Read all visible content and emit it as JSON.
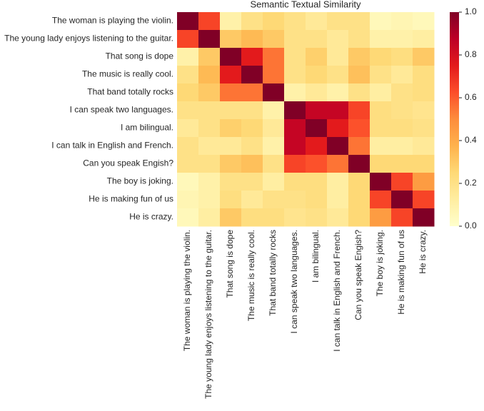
{
  "chart_data": {
    "type": "heatmap",
    "title": "Semantic Textual Similarity",
    "categories": [
      "The woman is playing the violin.",
      "The young lady enjoys listening to the guitar.",
      "That song is dope",
      "The music is really cool.",
      "That band totally rocks",
      "I can speak two languages.",
      "I am bilingual.",
      "I can talk in English and French.",
      "Can you speak Engish?",
      "The boy is joking.",
      "He is making fun of us",
      "He is crazy."
    ],
    "values": [
      [
        1,
        0.65,
        0.1,
        0.2,
        0.25,
        0.2,
        0.15,
        0.2,
        0.2,
        0.05,
        0.07,
        0.05
      ],
      [
        0.65,
        1,
        0.3,
        0.35,
        0.3,
        0.2,
        0.2,
        0.15,
        0.2,
        0.1,
        0.1,
        0.12
      ],
      [
        0.1,
        0.3,
        1,
        0.75,
        0.55,
        0.2,
        0.28,
        0.15,
        0.3,
        0.25,
        0.22,
        0.3
      ],
      [
        0.2,
        0.35,
        0.75,
        1,
        0.55,
        0.2,
        0.25,
        0.2,
        0.33,
        0.2,
        0.15,
        0.22
      ],
      [
        0.25,
        0.3,
        0.55,
        0.55,
        1,
        0.1,
        0.15,
        0.1,
        0.2,
        0.12,
        0.2,
        0.22
      ],
      [
        0.2,
        0.2,
        0.2,
        0.2,
        0.1,
        1,
        0.85,
        0.85,
        0.65,
        0.22,
        0.2,
        0.18
      ],
      [
        0.15,
        0.2,
        0.28,
        0.25,
        0.15,
        0.85,
        1,
        0.75,
        0.62,
        0.22,
        0.22,
        0.2
      ],
      [
        0.2,
        0.15,
        0.15,
        0.2,
        0.1,
        0.85,
        0.75,
        1,
        0.55,
        0.12,
        0.12,
        0.15
      ],
      [
        0.2,
        0.2,
        0.3,
        0.33,
        0.2,
        0.65,
        0.62,
        0.55,
        1,
        0.25,
        0.25,
        0.25
      ],
      [
        0.05,
        0.1,
        0.2,
        0.2,
        0.12,
        0.22,
        0.22,
        0.12,
        0.25,
        1,
        0.65,
        0.45
      ],
      [
        0.07,
        0.1,
        0.22,
        0.15,
        0.2,
        0.2,
        0.22,
        0.12,
        0.25,
        0.65,
        1,
        0.65
      ],
      [
        0.05,
        0.12,
        0.3,
        0.22,
        0.22,
        0.18,
        0.2,
        0.15,
        0.25,
        0.45,
        0.65,
        1
      ]
    ],
    "colormap": "YlOrRd",
    "clim": [
      0,
      1
    ],
    "cticks": [
      {
        "value": 0,
        "label": "0.0"
      },
      {
        "value": 0.2,
        "label": "0.2"
      },
      {
        "value": 0.4,
        "label": "0.4"
      },
      {
        "value": 0.6,
        "label": "0.6"
      },
      {
        "value": 0.8,
        "label": "0.8"
      },
      {
        "value": 1,
        "label": "1.0"
      }
    ]
  }
}
